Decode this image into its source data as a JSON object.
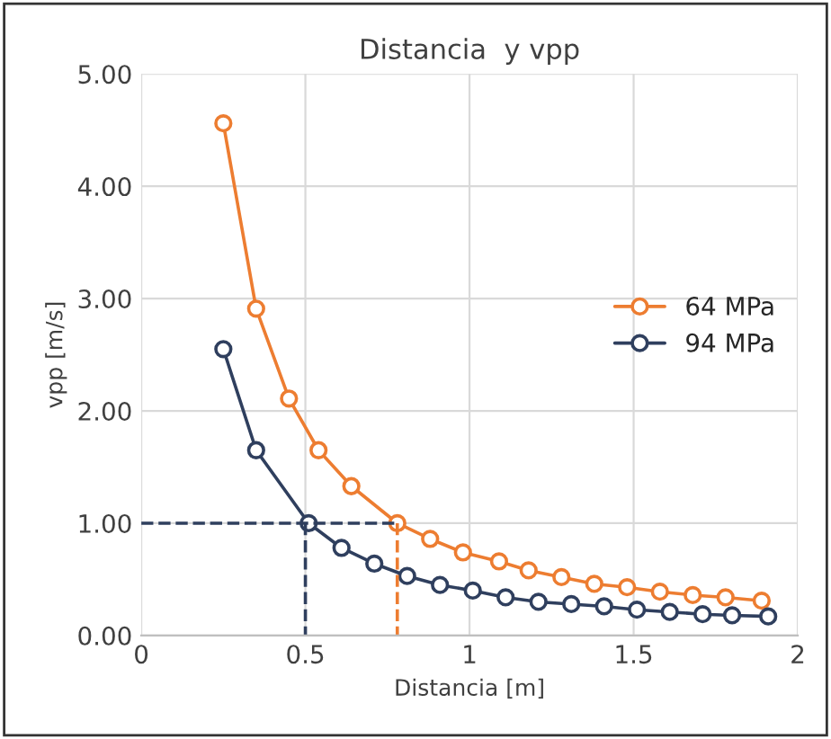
{
  "chart_data": {
    "type": "line",
    "title": "Distancia  y vpp",
    "xlabel": "Distancia [m]",
    "ylabel": "vpp [m/s]",
    "xlim": [
      0,
      2
    ],
    "xticks": [
      0,
      0.5,
      1,
      1.5,
      2
    ],
    "ylim": [
      0,
      5
    ],
    "yticks": [
      {
        "value": 0,
        "label": "0.00"
      },
      {
        "value": 1,
        "label": "1.00"
      },
      {
        "value": 2,
        "label": "2.00"
      },
      {
        "value": 3,
        "label": "3.00"
      },
      {
        "value": 4,
        "label": "4.00"
      },
      {
        "value": 5,
        "label": "5.00"
      }
    ],
    "grid": true,
    "legend": "center right",
    "marker": "circle",
    "line_style": "solid",
    "series": [
      {
        "name": "64 MPa",
        "color": "#ed7d31",
        "x": [
          0.25,
          0.35,
          0.45,
          0.54,
          0.64,
          0.78,
          0.88,
          0.98,
          1.09,
          1.18,
          1.28,
          1.38,
          1.48,
          1.58,
          1.68,
          1.78,
          1.89
        ],
        "values": [
          4.56,
          2.91,
          2.11,
          1.65,
          1.33,
          1.0,
          0.86,
          0.74,
          0.66,
          0.58,
          0.52,
          0.46,
          0.43,
          0.39,
          0.36,
          0.34,
          0.31
        ]
      },
      {
        "name": "94 MPa",
        "color": "#2f3f5e",
        "x": [
          0.25,
          0.35,
          0.51,
          0.61,
          0.71,
          0.81,
          0.91,
          1.01,
          1.11,
          1.21,
          1.31,
          1.41,
          1.51,
          1.61,
          1.71,
          1.8,
          1.91
        ],
        "values": [
          2.55,
          1.65,
          1.0,
          0.78,
          0.64,
          0.53,
          0.45,
          0.4,
          0.34,
          0.3,
          0.28,
          0.26,
          0.23,
          0.21,
          0.19,
          0.18,
          0.17
        ]
      },
      {
        "color": "#2f3f5e",
        "x": [
          0,
          0.78
        ],
        "values": [
          1.0,
          1.0
        ],
        "marker": "none",
        "line_style": "dashed"
      },
      {
        "color": "#2f3f5e",
        "x": [
          0.5,
          0.5
        ],
        "values": [
          1.0,
          0
        ],
        "marker": "none",
        "line_style": "dashed"
      },
      {
        "color": "#ed7d31",
        "x": [
          0.78,
          0.78
        ],
        "values": [
          1.0,
          0
        ],
        "marker": "none",
        "line_style": "dashed"
      }
    ]
  }
}
